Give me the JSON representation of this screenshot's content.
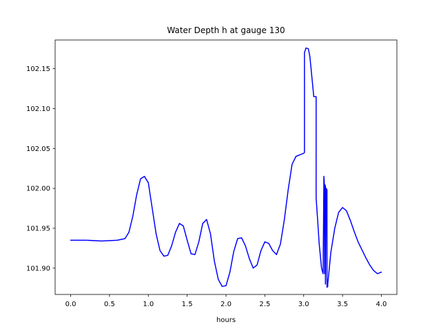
{
  "chart_data": {
    "type": "line",
    "title": "Water Depth h at gauge 130",
    "xlabel": "hours",
    "ylabel": "",
    "xlim": [
      -0.2,
      4.2
    ],
    "ylim": [
      101.867,
      102.186
    ],
    "xticks": [
      0.0,
      0.5,
      1.0,
      1.5,
      2.0,
      2.5,
      3.0,
      3.5,
      4.0
    ],
    "xtick_labels": [
      "0.0",
      "0.5",
      "1.0",
      "1.5",
      "2.0",
      "2.5",
      "3.0",
      "3.5",
      "4.0"
    ],
    "yticks": [
      101.9,
      101.95,
      102.0,
      102.05,
      102.1,
      102.15
    ],
    "ytick_labels": [
      "101.90",
      "101.95",
      "102.00",
      "102.05",
      "102.10",
      "102.15"
    ],
    "grid": false,
    "series": [
      {
        "color": "#0000ff",
        "x": [
          0.0,
          0.2,
          0.4,
          0.6,
          0.7,
          0.75,
          0.8,
          0.85,
          0.9,
          0.95,
          1.0,
          1.05,
          1.1,
          1.15,
          1.2,
          1.25,
          1.3,
          1.35,
          1.4,
          1.45,
          1.5,
          1.55,
          1.6,
          1.65,
          1.7,
          1.75,
          1.8,
          1.85,
          1.9,
          1.95,
          2.0,
          2.05,
          2.1,
          2.15,
          2.2,
          2.25,
          2.3,
          2.35,
          2.4,
          2.45,
          2.5,
          2.55,
          2.6,
          2.65,
          2.7,
          2.75,
          2.8,
          2.85,
          2.9,
          2.95,
          3.0,
          3.01,
          3.01,
          3.03,
          3.06,
          3.08,
          3.1,
          3.13,
          3.16,
          3.16,
          3.18,
          3.2,
          3.23,
          3.25,
          3.26,
          3.265,
          3.27,
          3.27,
          3.28,
          3.28,
          3.29,
          3.3,
          3.3,
          3.31,
          3.31,
          3.32,
          3.35,
          3.4,
          3.45,
          3.5,
          3.55,
          3.6,
          3.65,
          3.7,
          3.75,
          3.8,
          3.85,
          3.9,
          3.95,
          4.0
        ],
        "y": [
          101.935,
          101.935,
          101.934,
          101.935,
          101.937,
          101.945,
          101.965,
          101.992,
          102.012,
          102.015,
          102.007,
          101.975,
          101.943,
          101.922,
          101.915,
          101.916,
          101.928,
          101.945,
          101.956,
          101.953,
          101.935,
          101.918,
          101.917,
          101.933,
          101.956,
          101.961,
          101.943,
          101.909,
          101.886,
          101.877,
          101.878,
          101.895,
          101.921,
          101.937,
          101.938,
          101.928,
          101.912,
          101.9,
          101.904,
          101.922,
          101.933,
          101.931,
          101.922,
          101.917,
          101.93,
          101.96,
          101.998,
          102.03,
          102.04,
          102.042,
          102.044,
          102.045,
          102.17,
          102.176,
          102.175,
          102.165,
          102.145,
          102.115,
          102.115,
          101.988,
          101.96,
          101.93,
          101.9,
          101.893,
          102.015,
          102.008,
          101.893,
          102.005,
          102.003,
          101.88,
          102.0,
          101.998,
          101.876,
          101.877,
          101.88,
          101.89,
          101.92,
          101.95,
          101.97,
          101.976,
          101.972,
          101.96,
          101.946,
          101.933,
          101.923,
          101.913,
          101.904,
          101.897,
          101.893,
          101.895
        ]
      }
    ]
  }
}
